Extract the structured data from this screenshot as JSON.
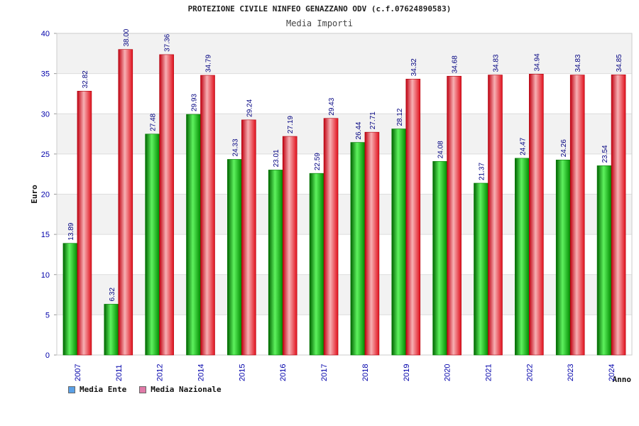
{
  "title": "PROTEZIONE CIVILE NINFEO GENAZZANO ODV (c.f.07624890583)",
  "subtitle": "Media Importi",
  "colors": {
    "ente": "#00a800",
    "nazionale": "#e8101e",
    "legend_ente": "#5aa0e6",
    "legend_nazionale": "#e07aa8",
    "axis_text": "#0000aa",
    "value_label": "#000080"
  },
  "legend": {
    "ente": "Media Ente",
    "nazionale": "Media Nazionale"
  },
  "chart_data": {
    "type": "bar",
    "title": "PROTEZIONE CIVILE NINFEO GENAZZANO ODV (c.f.07624890583)",
    "subtitle": "Media Importi",
    "xlabel": "Anno",
    "ylabel": "Euro",
    "ylim": [
      0,
      40
    ],
    "yticks": [
      0,
      5,
      10,
      15,
      20,
      25,
      30,
      35,
      40
    ],
    "categories": [
      "2007",
      "2011",
      "2012",
      "2014",
      "2015",
      "2016",
      "2017",
      "2018",
      "2019",
      "2020",
      "2021",
      "2022",
      "2023",
      "2024"
    ],
    "series": [
      {
        "name": "Media Ente",
        "values": [
          13.89,
          6.32,
          27.48,
          29.93,
          24.33,
          23.01,
          22.59,
          26.44,
          28.12,
          24.08,
          21.37,
          24.47,
          24.26,
          23.54
        ],
        "labels": [
          "13.89",
          "6.32",
          "27.48",
          "29.93",
          "24.33",
          "23.01",
          "22.59",
          "26.44",
          "28.12",
          "24.08",
          "21.37",
          "24.47",
          "24.26",
          "23.54"
        ]
      },
      {
        "name": "Media Nazionale",
        "values": [
          32.82,
          38.0,
          37.36,
          34.79,
          29.24,
          27.19,
          29.43,
          27.71,
          34.32,
          34.68,
          34.83,
          34.94,
          34.83,
          34.85
        ],
        "labels": [
          "32.82",
          "38.00",
          "37.36",
          "34.79",
          "29.24",
          "27.19",
          "29.43",
          "27.71",
          "34.32",
          "34.68",
          "34.83",
          "34.94",
          "34.83",
          "34.85"
        ]
      }
    ],
    "grid": true,
    "legend_position": "bottom-left"
  }
}
